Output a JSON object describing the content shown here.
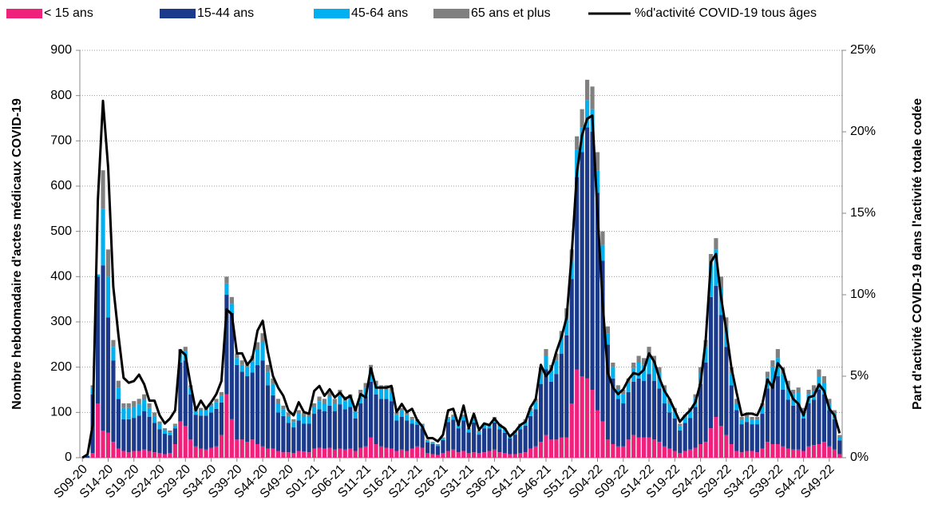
{
  "chart_data": {
    "type": "bar",
    "stacked": true,
    "grid": true,
    "y_label": "Nombre hebdomadaire d'actes médicaux COVID-19",
    "y2_label": "Part d'activité COVID-19 dans l'activité totale codée",
    "ylim": [
      0,
      900
    ],
    "yticks": [
      0,
      100,
      200,
      300,
      400,
      500,
      600,
      700,
      800,
      900
    ],
    "y2lim": [
      0,
      25
    ],
    "y2ticks": [
      {
        "value": 0,
        "label": "0%"
      },
      {
        "value": 5,
        "label": "5%"
      },
      {
        "value": 10,
        "label": "10%"
      },
      {
        "value": 15,
        "label": "15%"
      },
      {
        "value": 20,
        "label": "20%"
      },
      {
        "value": 25,
        "label": "25%"
      }
    ],
    "categories": [
      "S09-20",
      null,
      null,
      null,
      null,
      "S14-20",
      null,
      null,
      null,
      null,
      "S19-20",
      null,
      null,
      null,
      null,
      "S24-20",
      null,
      null,
      null,
      null,
      "S29-20",
      null,
      null,
      null,
      null,
      "S34-20",
      null,
      null,
      null,
      null,
      "S39-20",
      null,
      null,
      null,
      null,
      "S44-20",
      null,
      null,
      null,
      null,
      "S49-20",
      null,
      null,
      null,
      null,
      "S01-21",
      null,
      null,
      null,
      null,
      "S06-21",
      null,
      null,
      null,
      null,
      "S11-21",
      null,
      null,
      null,
      null,
      "S16-21",
      null,
      null,
      null,
      null,
      "S21-21",
      null,
      null,
      null,
      null,
      "S26-21",
      null,
      null,
      null,
      null,
      "S31-21",
      null,
      null,
      null,
      null,
      "S36-21",
      null,
      null,
      null,
      null,
      "S41-21",
      null,
      null,
      null,
      null,
      "S46-21",
      null,
      null,
      null,
      null,
      "S51-21",
      null,
      null,
      null,
      null,
      "S04-22",
      null,
      null,
      null,
      null,
      "S09-22",
      null,
      null,
      null,
      null,
      "S14-22",
      null,
      null,
      null,
      null,
      "S19-22",
      null,
      null,
      null,
      null,
      "S24-22",
      null,
      null,
      null,
      null,
      "S29-22",
      null,
      null,
      null,
      null,
      "S34-22",
      null,
      null,
      null,
      null,
      "S39-22",
      null,
      null,
      null,
      null,
      "S44-22",
      null,
      null,
      null,
      null,
      "S49-22",
      null,
      null
    ],
    "series": [
      {
        "name": "< 15 ans",
        "color": "#f0217a",
        "values": [
          0,
          0,
          10,
          120,
          60,
          55,
          35,
          20,
          15,
          12,
          15,
          15,
          18,
          15,
          12,
          10,
          8,
          10,
          30,
          80,
          70,
          40,
          25,
          20,
          18,
          22,
          25,
          50,
          140,
          85,
          40,
          40,
          35,
          40,
          30,
          25,
          20,
          20,
          15,
          12,
          12,
          10,
          15,
          14,
          12,
          20,
          22,
          20,
          22,
          18,
          20,
          18,
          20,
          15,
          22,
          25,
          45,
          30,
          25,
          22,
          20,
          15,
          18,
          15,
          20,
          25,
          22,
          10,
          8,
          6,
          10,
          15,
          18,
          12,
          15,
          10,
          12,
          10,
          12,
          15,
          18,
          12,
          10,
          8,
          8,
          10,
          12,
          20,
          25,
          35,
          50,
          40,
          40,
          45,
          45,
          120,
          195,
          180,
          175,
          150,
          105,
          80,
          40,
          30,
          25,
          25,
          40,
          50,
          45,
          45,
          45,
          40,
          35,
          25,
          20,
          15,
          10,
          15,
          18,
          22,
          30,
          35,
          65,
          90,
          70,
          50,
          30,
          15,
          12,
          15,
          15,
          12,
          20,
          35,
          30,
          30,
          25,
          20,
          18,
          18,
          15,
          25,
          28,
          30,
          35,
          25,
          18,
          8
        ]
      },
      {
        "name": "15-44 ans",
        "color": "#1c3a8c",
        "values": [
          0,
          4,
          130,
          280,
          365,
          255,
          180,
          110,
          70,
          73,
          73,
          78,
          85,
          75,
          65,
          53,
          45,
          40,
          35,
          130,
          145,
          100,
          70,
          73,
          75,
          78,
          83,
          72,
          220,
          235,
          165,
          150,
          145,
          148,
          175,
          190,
          140,
          118,
          85,
          80,
          65,
          57,
          67,
          61,
          63,
          77,
          85,
          83,
          93,
          85,
          98,
          89,
          92,
          72,
          98,
          110,
          123,
          110,
          105,
          108,
          105,
          67,
          72,
          67,
          55,
          48,
          43,
          24,
          22,
          20,
          29,
          64,
          66,
          53,
          67,
          46,
          66,
          41,
          53,
          50,
          60,
          51,
          45,
          35,
          43,
          53,
          59,
          72,
          82,
          128,
          145,
          128,
          145,
          185,
          225,
          275,
          425,
          495,
          555,
          570,
          480,
          355,
          210,
          145,
          105,
          95,
          105,
          118,
          130,
          125,
          140,
          130,
          118,
          95,
          80,
          72,
          50,
          62,
          70,
          90,
          133,
          175,
          290,
          290,
          245,
          195,
          130,
          90,
          62,
          64,
          59,
          62,
          77,
          118,
          135,
          150,
          125,
          108,
          97,
          100,
          72,
          95,
          100,
          120,
          105,
          80,
          67,
          30
        ]
      },
      {
        "name": "45-64 ans",
        "color": "#00b0f0",
        "values": [
          0,
          1,
          15,
          5,
          125,
          90,
          30,
          25,
          25,
          25,
          25,
          25,
          25,
          20,
          15,
          12,
          8,
          6,
          6,
          20,
          20,
          15,
          10,
          12,
          12,
          14,
          15,
          15,
          25,
          20,
          15,
          15,
          20,
          25,
          35,
          40,
          30,
          25,
          20,
          15,
          15,
          12,
          15,
          15,
          15,
          15,
          18,
          17,
          20,
          17,
          20,
          18,
          18,
          15,
          20,
          20,
          25,
          20,
          20,
          20,
          20,
          12,
          14,
          12,
          10,
          8,
          7,
          4,
          3,
          3,
          4,
          8,
          8,
          7,
          9,
          6,
          8,
          6,
          7,
          7,
          8,
          8,
          7,
          5,
          6,
          8,
          9,
          12,
          15,
          25,
          30,
          25,
          30,
          35,
          40,
          40,
          60,
          55,
          60,
          50,
          50,
          35,
          25,
          25,
          20,
          20,
          20,
          30,
          35,
          35,
          45,
          40,
          35,
          30,
          20,
          15,
          10,
          12,
          15,
          20,
          25,
          35,
          70,
          80,
          60,
          45,
          25,
          15,
          10,
          10,
          10,
          10,
          15,
          25,
          35,
          40,
          35,
          30,
          25,
          25,
          15,
          20,
          20,
          30,
          25,
          15,
          12,
          8
        ]
      },
      {
        "name": "65 ans et plus",
        "color": "#808080",
        "values": [
          0,
          0,
          5,
          0,
          85,
          60,
          15,
          15,
          10,
          10,
          12,
          12,
          12,
          10,
          8,
          5,
          4,
          4,
          4,
          10,
          10,
          5,
          5,
          5,
          5,
          6,
          7,
          8,
          15,
          15,
          10,
          10,
          10,
          12,
          15,
          20,
          15,
          12,
          10,
          8,
          8,
          6,
          8,
          10,
          10,
          8,
          10,
          10,
          10,
          10,
          12,
          10,
          10,
          8,
          10,
          10,
          12,
          10,
          10,
          10,
          10,
          6,
          6,
          6,
          5,
          4,
          3,
          2,
          2,
          1,
          2,
          3,
          3,
          3,
          4,
          3,
          4,
          3,
          3,
          3,
          4,
          4,
          3,
          2,
          3,
          4,
          5,
          6,
          8,
          12,
          15,
          12,
          15,
          15,
          20,
          25,
          30,
          40,
          45,
          50,
          40,
          30,
          15,
          10,
          10,
          10,
          10,
          12,
          15,
          15,
          15,
          15,
          12,
          10,
          10,
          8,
          5,
          6,
          7,
          8,
          12,
          15,
          25,
          25,
          25,
          20,
          15,
          10,
          6,
          6,
          6,
          6,
          8,
          12,
          15,
          20,
          15,
          12,
          10,
          12,
          8,
          10,
          12,
          15,
          15,
          10,
          8,
          4
        ]
      },
      {
        "name": "%d'activité COVID-19 tous âges",
        "color": "#000000",
        "type": "line",
        "axis": "y2",
        "values": [
          0,
          0.2,
          2.0,
          15.8,
          21.9,
          17.8,
          10.5,
          7.5,
          4.9,
          4.6,
          4.7,
          5.1,
          4.5,
          3.5,
          3.5,
          2.6,
          2.1,
          2.4,
          2.9,
          6.6,
          6.3,
          4.5,
          2.9,
          3.5,
          3.0,
          3.4,
          3.9,
          4.7,
          9.1,
          8.8,
          6.4,
          6.4,
          5.7,
          6.1,
          7.8,
          8.4,
          6.5,
          5.0,
          4.3,
          3.8,
          2.9,
          2.6,
          3.4,
          2.8,
          2.7,
          4.1,
          4.4,
          3.8,
          4.2,
          3.7,
          4.0,
          3.6,
          3.8,
          2.9,
          3.9,
          3.7,
          5.5,
          4.3,
          4.3,
          4.3,
          4.4,
          2.8,
          3.3,
          2.8,
          3.0,
          2.3,
          1.9,
          1.2,
          1.2,
          1.0,
          1.4,
          2.9,
          3.0,
          2.0,
          3.2,
          1.8,
          2.7,
          1.7,
          2.1,
          2.0,
          2.4,
          2.0,
          1.8,
          1.3,
          1.6,
          2.0,
          2.2,
          3.1,
          3.6,
          5.7,
          5.0,
          5.4,
          6.5,
          7.4,
          8.6,
          12.5,
          17.5,
          19.8,
          20.8,
          21.0,
          15.0,
          9.5,
          5.2,
          4.3,
          3.9,
          4.2,
          4.8,
          5.2,
          5.1,
          5.4,
          6.4,
          5.9,
          4.9,
          4.1,
          3.6,
          2.9,
          2.2,
          2.6,
          2.9,
          3.4,
          4.6,
          7.2,
          12.0,
          12.5,
          9.8,
          7.8,
          5.5,
          4.0,
          2.6,
          2.7,
          2.7,
          2.6,
          3.3,
          4.8,
          4.3,
          5.8,
          5.4,
          4.3,
          3.6,
          3.3,
          2.6,
          3.7,
          3.8,
          4.5,
          4.1,
          3.0,
          2.6,
          1.5
        ]
      }
    ]
  }
}
